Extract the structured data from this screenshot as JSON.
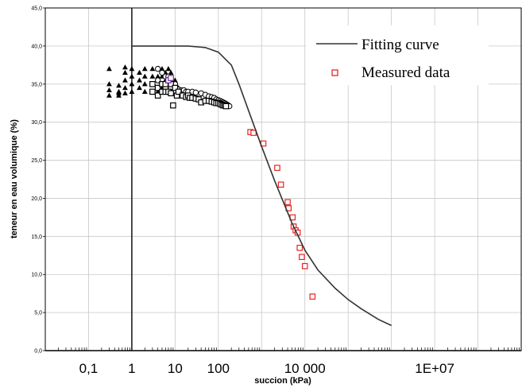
{
  "chart_data": {
    "type": "scatter",
    "title": "",
    "xlabel": "succion (kPa)",
    "ylabel": "teneur en eau volumique (%)",
    "x_scale": "log",
    "xlim": [
      0.01,
      1000000000
    ],
    "ylim": [
      0,
      45
    ],
    "grid": true,
    "legend_position": "top-right",
    "x_tick_labels": [
      {
        "value": 0.1,
        "label": "0,1"
      },
      {
        "value": 1,
        "label": "1"
      },
      {
        "value": 10,
        "label": "10"
      },
      {
        "value": 100,
        "label": "100"
      },
      {
        "value": 10000,
        "label": "10 000"
      },
      {
        "value": 10000000,
        "label": "1E+07"
      }
    ],
    "y_tick_labels": [
      {
        "value": 0,
        "label": "0,0"
      },
      {
        "value": 5,
        "label": "5,0"
      },
      {
        "value": 10,
        "label": "10,0"
      },
      {
        "value": 15,
        "label": "15,0"
      },
      {
        "value": 20,
        "label": "20,0"
      },
      {
        "value": 25,
        "label": "25,0"
      },
      {
        "value": 30,
        "label": "30,0"
      },
      {
        "value": 35,
        "label": "35,0"
      },
      {
        "value": 40,
        "label": "40,0"
      },
      {
        "value": 45,
        "label": "45,0"
      }
    ],
    "series": [
      {
        "name": "Fitting curve",
        "style": "line",
        "color": "#333333",
        "x": [
          1,
          10,
          20,
          50,
          100,
          200,
          300,
          500,
          1000,
          2000,
          5000,
          10000,
          20000,
          50000,
          100000,
          200000,
          500000,
          1000000
        ],
        "y": [
          40,
          40,
          40,
          39.8,
          39.2,
          37.5,
          35,
          31.5,
          26.8,
          22.3,
          16.8,
          13.2,
          10.6,
          8.2,
          6.7,
          5.5,
          4.1,
          3.3
        ]
      },
      {
        "name": "Measured data",
        "style": "open-square",
        "color": "#e8231f",
        "x": [
          550,
          650,
          1100,
          2300,
          2800,
          4000,
          4200,
          5200,
          5500,
          6100,
          6800,
          7600,
          8500,
          10000,
          15000
        ],
        "y": [
          28.7,
          28.6,
          27.2,
          24,
          21.8,
          19.5,
          18.7,
          17.5,
          16.3,
          15.8,
          15.5,
          13.5,
          12.3,
          11.1,
          7.1
        ]
      },
      {
        "name": "",
        "style": "filled-triangle",
        "color": "#000000",
        "x": [
          0.3,
          0.3,
          0.3,
          0.3,
          0.5,
          0.5,
          0.5,
          0.5,
          0.7,
          0.7,
          0.7,
          0.7,
          0.7,
          1,
          1,
          1,
          1,
          1.5,
          1.5,
          1.5,
          2,
          2,
          2,
          2,
          3,
          3,
          3,
          4,
          4,
          4,
          5,
          5,
          5,
          5,
          6,
          6,
          6,
          7,
          7,
          7,
          8,
          8,
          10,
          10
        ],
        "y": [
          37,
          35,
          34.2,
          33.5,
          34.8,
          34,
          33.5,
          33.8,
          37.2,
          36.5,
          35.5,
          34.5,
          33.8,
          37,
          36,
          35,
          34,
          36.5,
          35.5,
          34.5,
          37,
          36,
          35,
          34,
          37,
          36,
          35,
          37,
          36,
          34,
          37,
          36,
          35,
          34.5,
          36.5,
          35.5,
          34.5,
          37,
          36,
          35,
          36.5,
          35.5,
          35.5,
          34.5
        ]
      },
      {
        "name": "",
        "style": "open-circle",
        "color": "#000000",
        "x": [
          4,
          4,
          5,
          5,
          6,
          6,
          7,
          7,
          8,
          8,
          9,
          9,
          10,
          10,
          11,
          12,
          14,
          16,
          18,
          20,
          25,
          30,
          40,
          50,
          60,
          70,
          80,
          90,
          100,
          110,
          120,
          130,
          140,
          150,
          160,
          170,
          180
        ],
        "y": [
          37,
          35.5,
          36.5,
          35,
          36,
          34.5,
          36,
          35,
          35.5,
          34.5,
          35,
          34,
          35,
          34,
          34.5,
          34.3,
          34.2,
          34.2,
          34,
          34,
          34,
          33.9,
          33.8,
          33.6,
          33.4,
          33.3,
          33.2,
          33,
          32.9,
          32.8,
          32.7,
          32.6,
          32.5,
          32.4,
          32.3,
          32.2,
          32.1
        ]
      },
      {
        "name": "",
        "style": "open-square",
        "color": "#000000",
        "x": [
          3,
          3,
          4,
          4,
          5,
          5,
          6,
          6,
          7,
          7,
          8,
          8,
          9,
          10,
          11,
          12,
          15,
          18,
          20,
          22,
          25,
          30,
          35,
          40,
          50,
          60,
          70,
          80,
          90,
          100,
          110,
          120,
          130,
          140,
          150
        ],
        "y": [
          35,
          34,
          34.5,
          33.5,
          35,
          34,
          35,
          34,
          35.5,
          34,
          35,
          33.8,
          32.2,
          34.5,
          33.5,
          34,
          33.5,
          33.3,
          33.5,
          33.2,
          33.2,
          33.1,
          33,
          32.6,
          32.8,
          32.8,
          32.7,
          32.6,
          32.5,
          32.5,
          32.4,
          32.3,
          32.2,
          32.2,
          32.1
        ]
      },
      {
        "name": "",
        "style": "open-square",
        "color": "#7030a0",
        "x": [
          7,
          8
        ],
        "y": [
          35.5,
          35.8
        ]
      }
    ]
  }
}
